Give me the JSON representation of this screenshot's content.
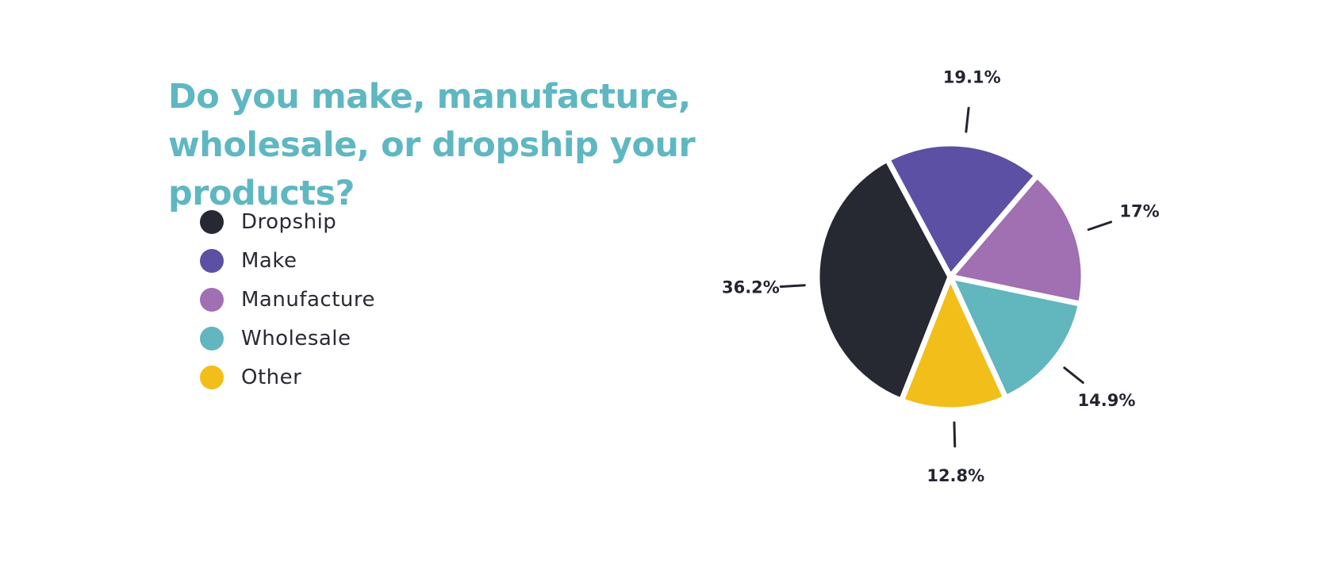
{
  "chart_data": {
    "type": "pie",
    "title": "Do you make, manufacture, wholesale, or dropship your products?",
    "legend_position": "left",
    "series": [
      {
        "name": "Dropship",
        "value": 36.2,
        "label": "36.2%",
        "color": "#262832"
      },
      {
        "name": "Make",
        "value": 19.1,
        "label": "19.1%",
        "color": "#5b50a3"
      },
      {
        "name": "Manufacture",
        "value": 17,
        "label": "17%",
        "color": "#a070b2"
      },
      {
        "name": "Wholesale",
        "value": 14.9,
        "label": "14.9%",
        "color": "#62b6bd"
      },
      {
        "name": "Other",
        "value": 12.8,
        "label": "12.8%",
        "color": "#f2be1a"
      }
    ]
  }
}
